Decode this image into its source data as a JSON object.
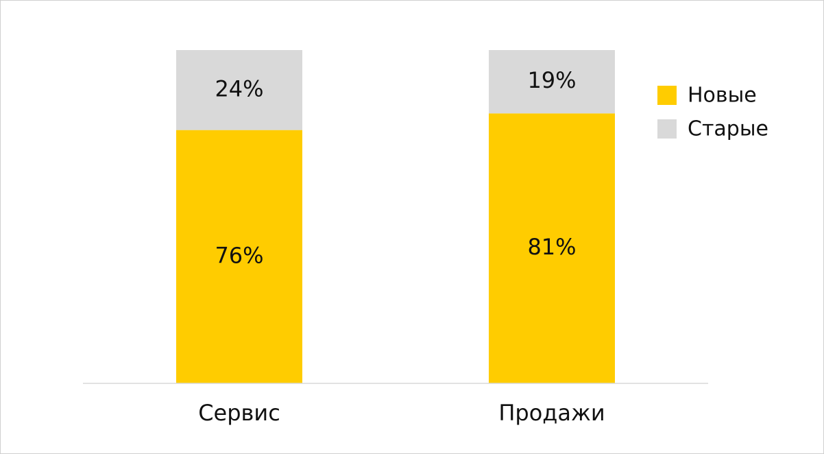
{
  "chart_data": {
    "type": "bar",
    "stacked": true,
    "percent": true,
    "categories": [
      "Сервис",
      "Продажи"
    ],
    "series": [
      {
        "name": "Новые",
        "values": [
          76,
          81
        ],
        "labels": [
          "76%",
          "81%"
        ],
        "color": "#FFCC00"
      },
      {
        "name": "Старые",
        "values": [
          24,
          19
        ],
        "labels": [
          "24%",
          "19%"
        ],
        "color": "#D9D9D9"
      }
    ],
    "ylim": [
      0,
      100
    ],
    "grid": false,
    "legend": "right"
  },
  "colors": {
    "axis": "#D9D9D9",
    "text": "#111111"
  }
}
